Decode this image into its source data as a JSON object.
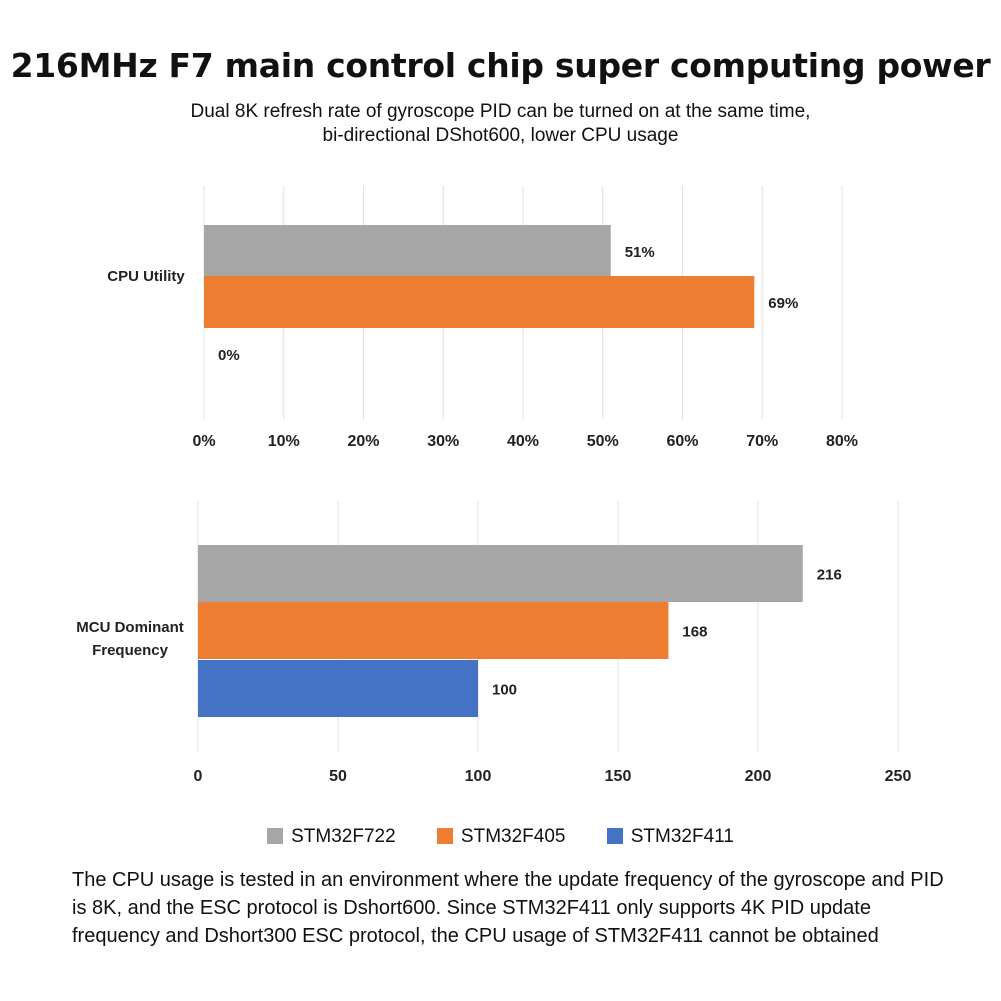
{
  "title": "216MHz F7 main control chip super computing power",
  "subtitle": [
    "Dual 8K refresh rate of gyroscope PID can be turned on at the same time,",
    "bi-directional DShot600, lower CPU usage"
  ],
  "colors": {
    "STM32F722": "#a6a6a6",
    "STM32F405": "#ed7d31",
    "STM32F411": "#4472c4",
    "grid": "#e0e0e0"
  },
  "legend": [
    "STM32F722",
    "STM32F405",
    "STM32F411"
  ],
  "note": "The CPU usage is tested in an environment where the update frequency of the gyroscope and PID is 8K, and the ESC protocol is Dshort600. Since STM32F411 only supports 4K PID update frequency and Dshort300 ESC protocol, the CPU usage of STM32F411 cannot be obtained",
  "chart_data": [
    {
      "type": "bar",
      "orientation": "horizontal",
      "category": "CPU Utility",
      "xlim": [
        0,
        80
      ],
      "ticks": [
        "0%",
        "10%",
        "20%",
        "30%",
        "40%",
        "50%",
        "60%",
        "70%",
        "80%"
      ],
      "series": [
        {
          "name": "STM32F722",
          "value": 51,
          "label": "51%"
        },
        {
          "name": "STM32F405",
          "value": 69,
          "label": "69%"
        },
        {
          "name": "STM32F411",
          "value": 0,
          "label": "0%"
        }
      ],
      "grid": true
    },
    {
      "type": "bar",
      "orientation": "horizontal",
      "category": "MCU Dominant Frequency",
      "category_lines": [
        "MCU Dominant",
        "Frequency"
      ],
      "xlim": [
        0,
        250
      ],
      "ticks": [
        "0",
        "50",
        "100",
        "150",
        "200",
        "250"
      ],
      "series": [
        {
          "name": "STM32F722",
          "value": 216,
          "label": "216"
        },
        {
          "name": "STM32F405",
          "value": 168,
          "label": "168"
        },
        {
          "name": "STM32F411",
          "value": 100,
          "label": "100"
        }
      ],
      "grid": true
    }
  ]
}
